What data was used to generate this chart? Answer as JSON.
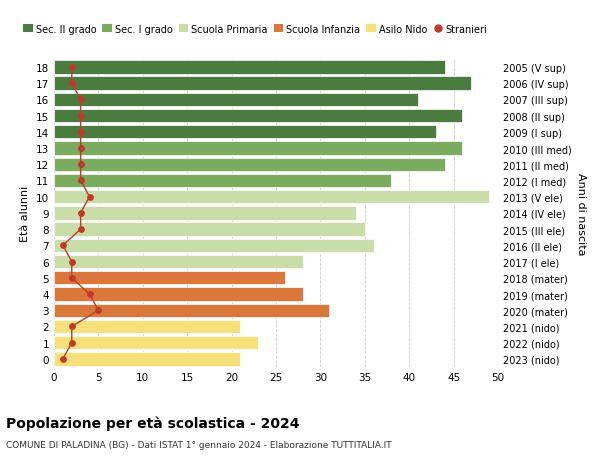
{
  "ages": [
    18,
    17,
    16,
    15,
    14,
    13,
    12,
    11,
    10,
    9,
    8,
    7,
    6,
    5,
    4,
    3,
    2,
    1,
    0
  ],
  "years": [
    "2005 (V sup)",
    "2006 (IV sup)",
    "2007 (III sup)",
    "2008 (II sup)",
    "2009 (I sup)",
    "2010 (III med)",
    "2011 (II med)",
    "2012 (I med)",
    "2013 (V ele)",
    "2014 (IV ele)",
    "2015 (III ele)",
    "2016 (II ele)",
    "2017 (I ele)",
    "2018 (mater)",
    "2019 (mater)",
    "2020 (mater)",
    "2021 (nido)",
    "2022 (nido)",
    "2023 (nido)"
  ],
  "bar_values": [
    44,
    47,
    41,
    46,
    43,
    46,
    44,
    38,
    49,
    34,
    35,
    36,
    28,
    26,
    28,
    31,
    21,
    23,
    21
  ],
  "bar_colors": [
    "#4a7c3f",
    "#4a7c3f",
    "#4a7c3f",
    "#4a7c3f",
    "#4a7c3f",
    "#7aab5e",
    "#7aab5e",
    "#7aab5e",
    "#c8dda8",
    "#c8dda8",
    "#c8dda8",
    "#c8dda8",
    "#c8dda8",
    "#d9783a",
    "#d9783a",
    "#d9783a",
    "#f5e07a",
    "#f5e07a",
    "#f5e07a"
  ],
  "stranieri_values": [
    2,
    2,
    3,
    3,
    3,
    3,
    3,
    3,
    4,
    3,
    3,
    1,
    2,
    2,
    4,
    5,
    2,
    2,
    1
  ],
  "legend_labels": [
    "Sec. II grado",
    "Sec. I grado",
    "Scuola Primaria",
    "Scuola Infanzia",
    "Asilo Nido",
    "Stranieri"
  ],
  "legend_colors": [
    "#4a7c3f",
    "#7aab5e",
    "#c8dda8",
    "#d9783a",
    "#f5e07a",
    "#c0392b"
  ],
  "ylabel_left": "Età alunni",
  "ylabel_right": "Anni di nascita",
  "title": "Popolazione per età scolastica - 2024",
  "subtitle": "COMUNE DI PALADINA (BG) - Dati ISTAT 1° gennaio 2024 - Elaborazione TUTTITALIA.IT",
  "xlim": [
    0,
    50
  ],
  "xticks": [
    0,
    5,
    10,
    15,
    20,
    25,
    30,
    35,
    40,
    45,
    50
  ],
  "grid_color": "#cccccc",
  "bg_color": "#ffffff",
  "stranieri_color": "#c0392b"
}
